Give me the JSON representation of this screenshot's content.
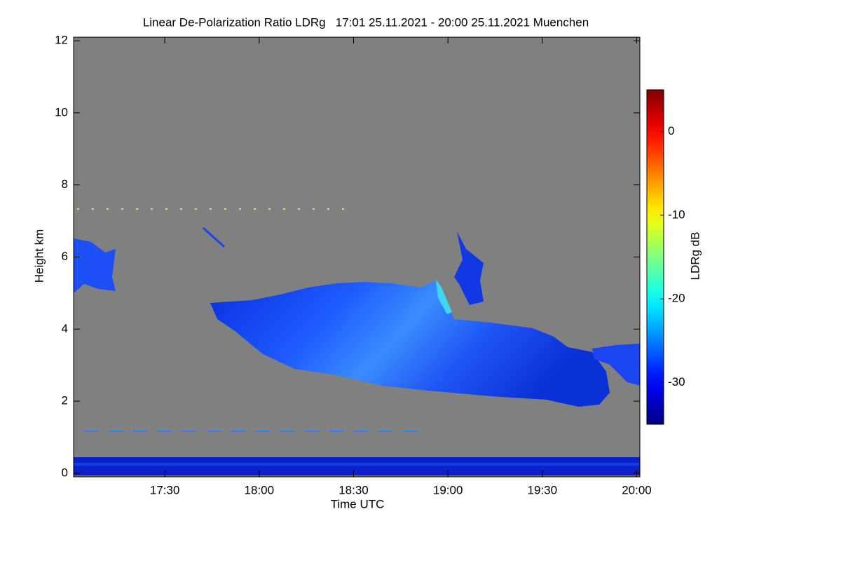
{
  "chart_data": {
    "type": "heatmap",
    "title": "Linear De-Polarization Ratio LDRg   17:01 25.11.2021 - 20:00 25.11.2021 Muenchen",
    "xlabel": "Time UTC",
    "ylabel": "Height km",
    "xlim": [
      17.0167,
      20.0167
    ],
    "xticks": [
      {
        "value": 17.5,
        "label": "17:30"
      },
      {
        "value": 18,
        "label": "18:00"
      },
      {
        "value": 18.5,
        "label": "18:30"
      },
      {
        "value": 19,
        "label": "19:00"
      },
      {
        "value": 19.5,
        "label": "19:30"
      },
      {
        "value": 20,
        "label": "20:00"
      }
    ],
    "ylim": [
      -0.1,
      12.1
    ],
    "yticks": [
      0,
      2,
      4,
      6,
      8,
      10,
      12
    ],
    "background_color": "#808080",
    "colormap": "jet",
    "colorbar": {
      "label": "LDRg dB",
      "lim": [
        -35,
        5
      ],
      "ticks": [
        -30,
        -20,
        -10,
        0
      ]
    }
  }
}
